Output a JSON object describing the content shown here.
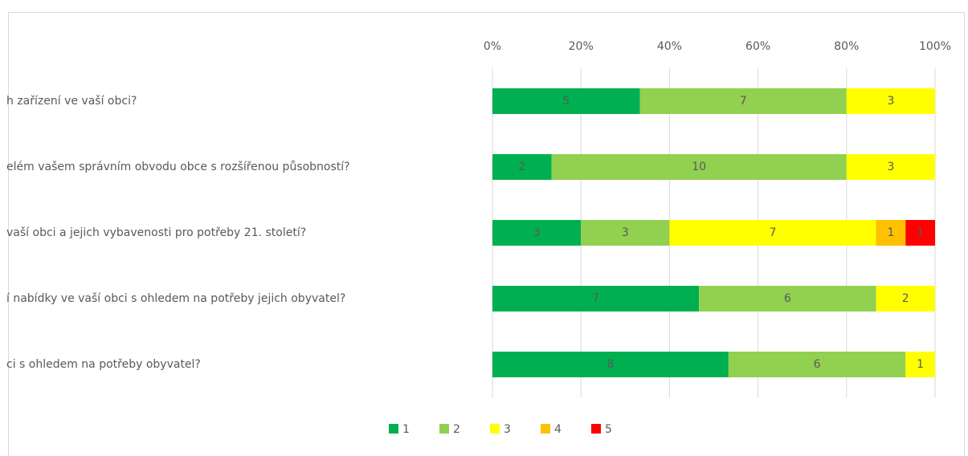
{
  "chart_data": {
    "type": "bar",
    "orientation": "horizontal",
    "stack": "percent",
    "categories": [
      "h zařízení ve vaší obci?",
      "elém vašem správním obvodu obce s rozšířenou působností?",
      "vaší obci a jejich vybavenosti pro potřeby 21. století?",
      "í nabídky ve vaší obci s ohledem na potřeby jejich obyvatel?",
      "ci s ohledem na potřeby obyvatel?"
    ],
    "series": [
      {
        "name": "1",
        "color": "#00b050",
        "values": [
          5,
          2,
          3,
          7,
          8
        ]
      },
      {
        "name": "2",
        "color": "#92d050",
        "values": [
          7,
          10,
          3,
          6,
          6
        ]
      },
      {
        "name": "3",
        "color": "#ffff00",
        "values": [
          3,
          3,
          7,
          2,
          1
        ]
      },
      {
        "name": "4",
        "color": "#ffc000",
        "values": [
          0,
          0,
          1,
          0,
          0
        ]
      },
      {
        "name": "5",
        "color": "#ff0000",
        "values": [
          0,
          0,
          1,
          0,
          0
        ]
      }
    ],
    "xlim": [
      0,
      100
    ],
    "xticks": [
      {
        "value": 0,
        "label": "0%"
      },
      {
        "value": 20,
        "label": "20%"
      },
      {
        "value": 40,
        "label": "40%"
      },
      {
        "value": 60,
        "label": "60%"
      },
      {
        "value": 80,
        "label": "80%"
      },
      {
        "value": 100,
        "label": "100%"
      }
    ],
    "grid": true,
    "legend": "bottom"
  }
}
